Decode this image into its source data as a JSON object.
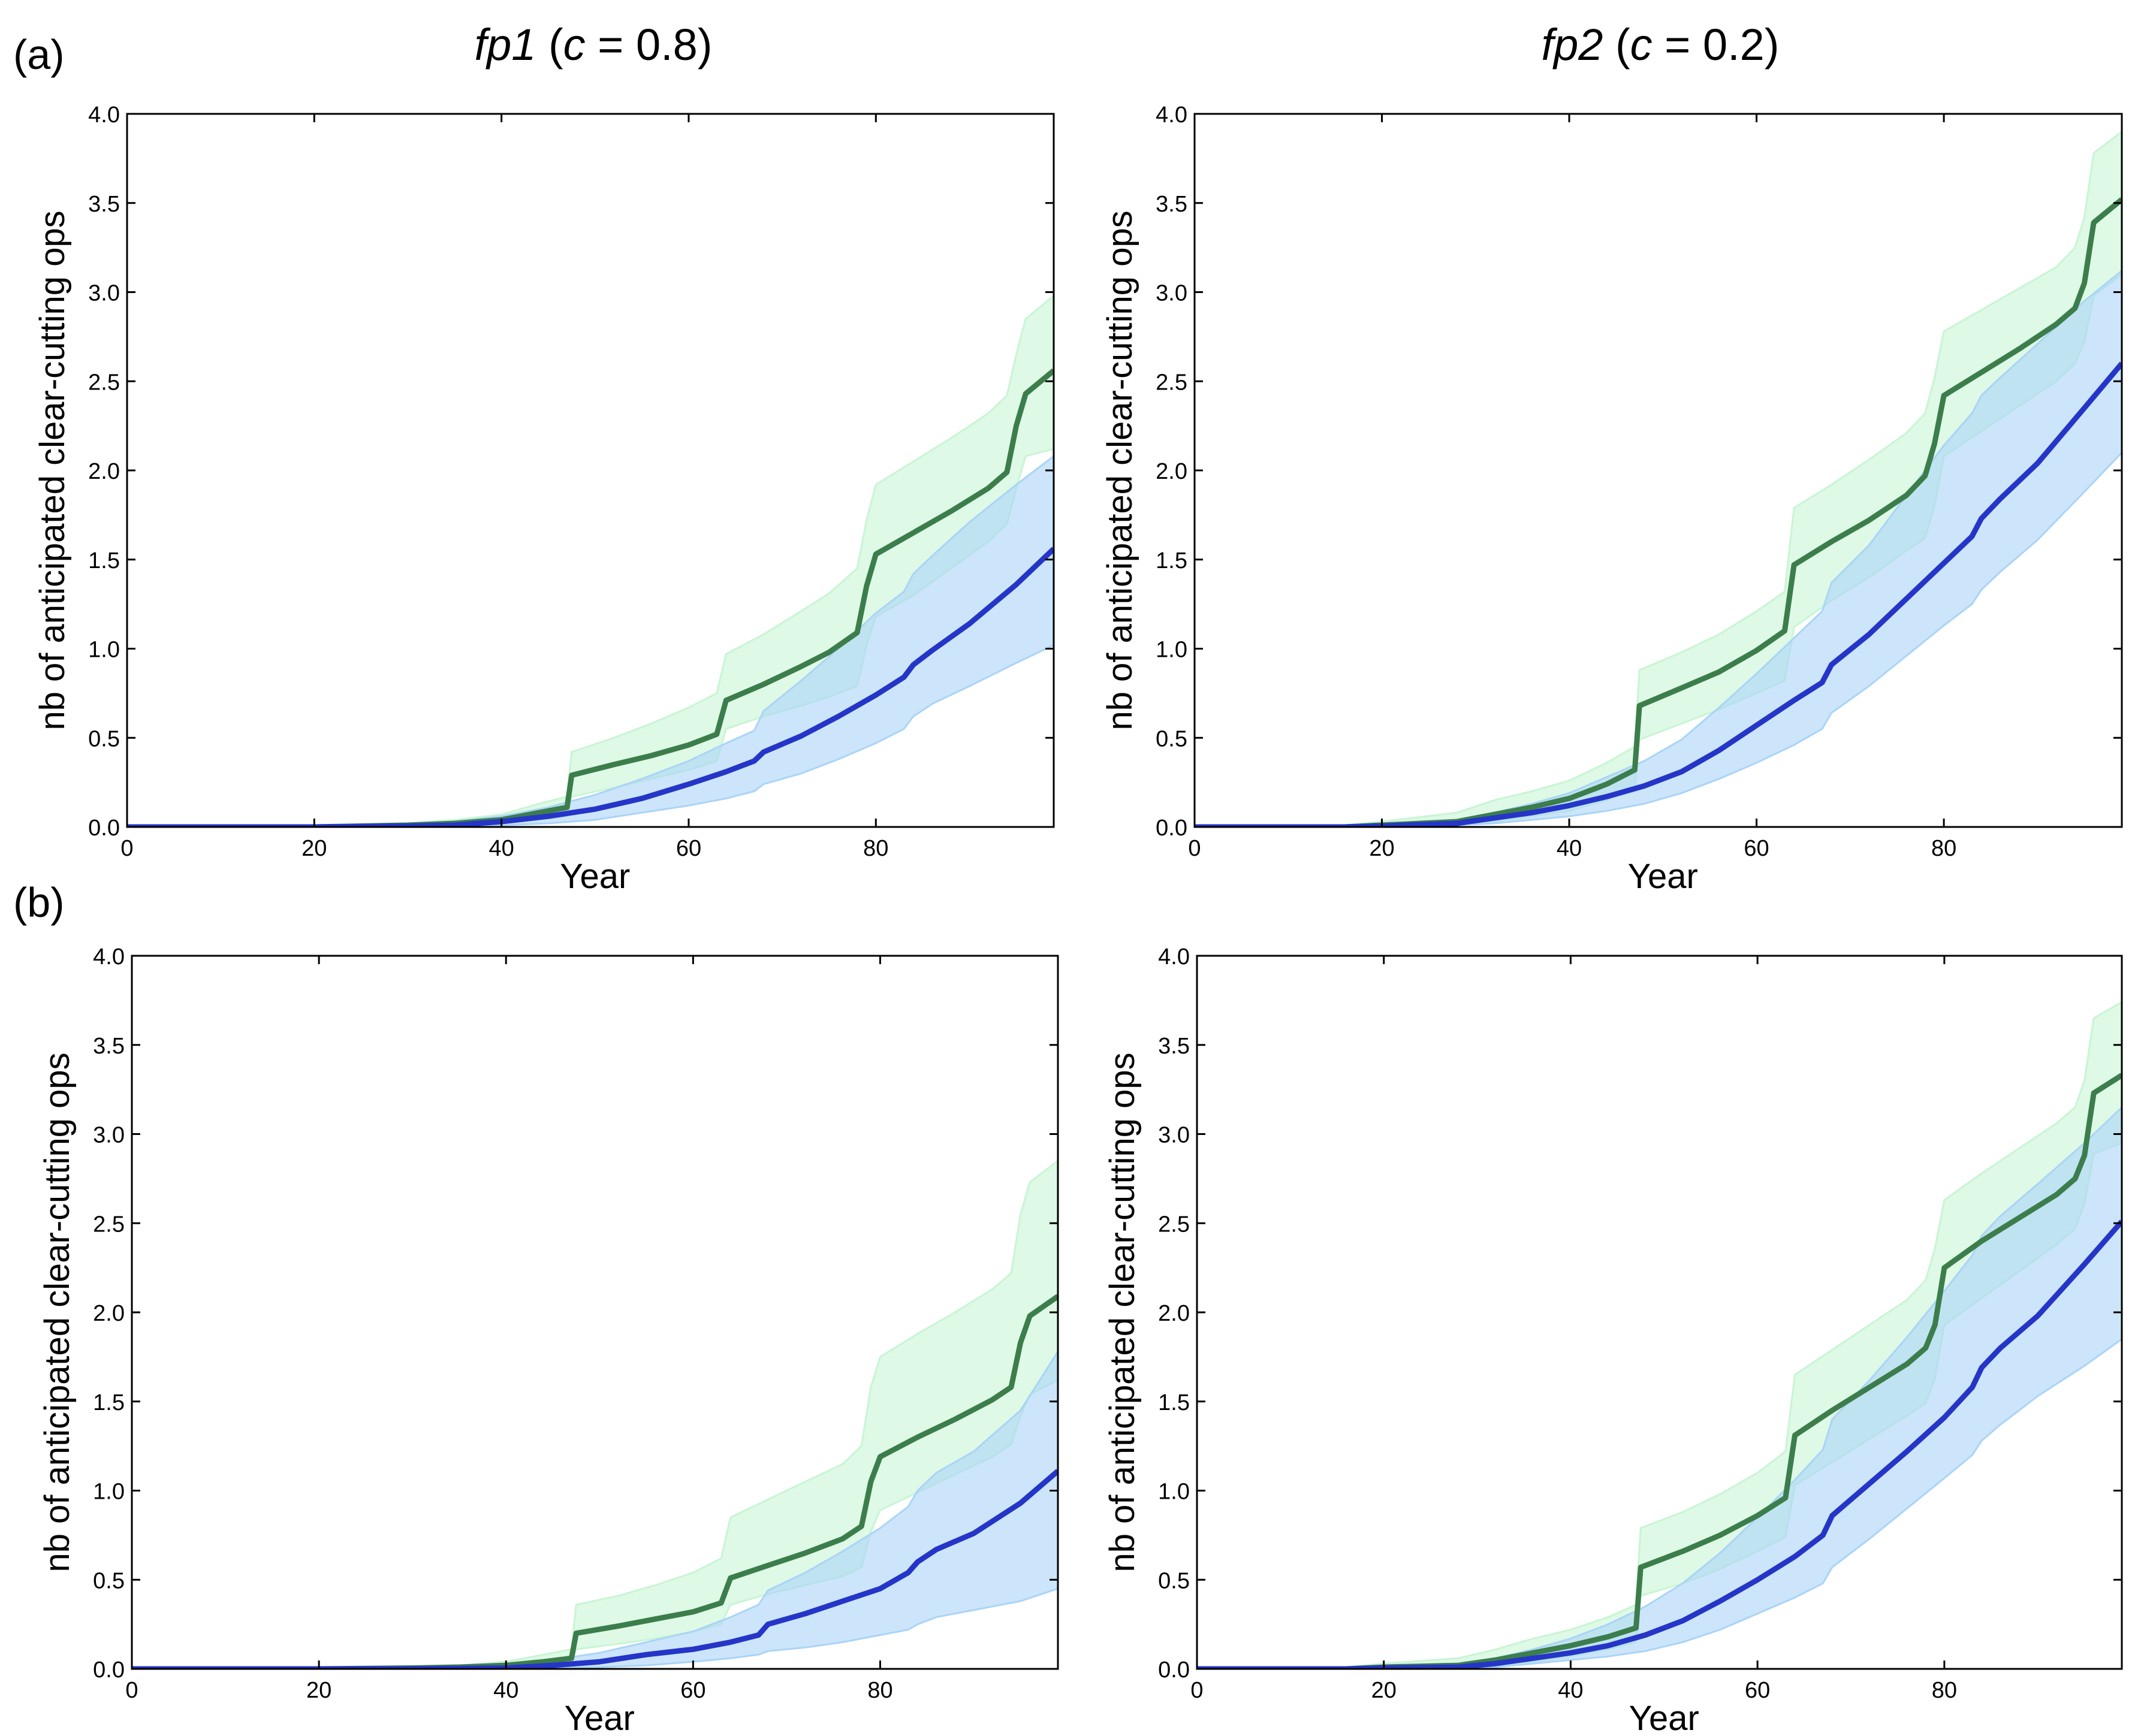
{
  "figure": {
    "column_titles": [
      {
        "italic_part": "fp1",
        "open": " (",
        "c_symbol": "c",
        "rest": " = 0.8)"
      },
      {
        "italic_part": "fp2",
        "open": " (",
        "c_symbol": "c",
        "rest": " = 0.2)"
      }
    ],
    "row_labels": [
      "(a)",
      "(b)"
    ]
  },
  "chart_data": [
    {
      "id": "a-fp1",
      "type": "line",
      "xlabel": "Year",
      "ylabel": "nb of anticipated clear-cutting ops",
      "xlim": [
        0,
        99
      ],
      "ylim": [
        0,
        4.0
      ],
      "xticks": [
        "0",
        "20",
        "40",
        "60",
        "80"
      ],
      "yticks": [
        "0.0",
        "0.5",
        "1.0",
        "1.5",
        "2.0",
        "2.5",
        "3.0",
        "3.5",
        "4.0"
      ],
      "series": [
        {
          "name": "green",
          "color": "#3c7d4c",
          "band_color": "#c8f5d4",
          "x": [
            0,
            20,
            30,
            35,
            40,
            44,
            47,
            47.5,
            52,
            56,
            60,
            63,
            64,
            68,
            72,
            75,
            78,
            79,
            80,
            84,
            88,
            92,
            94,
            95,
            96,
            99
          ],
          "y": [
            0,
            0,
            0.01,
            0.02,
            0.04,
            0.08,
            0.11,
            0.29,
            0.35,
            0.4,
            0.46,
            0.52,
            0.71,
            0.8,
            0.9,
            0.98,
            1.09,
            1.35,
            1.53,
            1.65,
            1.77,
            1.9,
            1.99,
            2.25,
            2.43,
            2.56
          ],
          "low": [
            0,
            0,
            0,
            0.01,
            0.02,
            0.04,
            0.06,
            0.17,
            0.22,
            0.27,
            0.32,
            0.37,
            0.55,
            0.62,
            0.68,
            0.73,
            0.79,
            1.02,
            1.18,
            1.3,
            1.45,
            1.6,
            1.7,
            1.9,
            2.08,
            2.12
          ],
          "high": [
            0,
            0.01,
            0.02,
            0.04,
            0.07,
            0.13,
            0.17,
            0.42,
            0.5,
            0.58,
            0.67,
            0.75,
            0.97,
            1.08,
            1.21,
            1.31,
            1.45,
            1.72,
            1.92,
            2.05,
            2.18,
            2.32,
            2.42,
            2.65,
            2.85,
            2.98
          ]
        },
        {
          "name": "blue",
          "color": "#2535c8",
          "band_color": "#aad4f7",
          "x": [
            0,
            20,
            30,
            35,
            40,
            45,
            50,
            55,
            60,
            64,
            67,
            68,
            72,
            76,
            80,
            83,
            84,
            86,
            90,
            95,
            99
          ],
          "y": [
            0,
            0,
            0.005,
            0.01,
            0.03,
            0.06,
            0.1,
            0.16,
            0.24,
            0.31,
            0.37,
            0.42,
            0.51,
            0.62,
            0.74,
            0.84,
            0.91,
            0.99,
            1.14,
            1.36,
            1.56
          ],
          "low": [
            0,
            0,
            0,
            0,
            0.01,
            0.02,
            0.04,
            0.08,
            0.12,
            0.16,
            0.2,
            0.24,
            0.3,
            0.38,
            0.47,
            0.55,
            0.62,
            0.69,
            0.79,
            0.92,
            1.02
          ],
          "high": [
            0,
            0.005,
            0.01,
            0.03,
            0.06,
            0.11,
            0.18,
            0.27,
            0.37,
            0.47,
            0.54,
            0.65,
            0.82,
            1.0,
            1.2,
            1.32,
            1.42,
            1.52,
            1.71,
            1.92,
            2.08
          ]
        }
      ]
    },
    {
      "id": "a-fp2",
      "type": "line",
      "xlabel": "Year",
      "ylabel": "nb of anticipated clear-cutting ops",
      "xlim": [
        0,
        99
      ],
      "ylim": [
        0,
        4.0
      ],
      "xticks": [
        "0",
        "20",
        "40",
        "60",
        "80"
      ],
      "yticks": [
        "0.0",
        "0.5",
        "1.0",
        "1.5",
        "2.0",
        "2.5",
        "3.0",
        "3.5",
        "4.0"
      ],
      "series": [
        {
          "name": "green",
          "color": "#3c7d4c",
          "band_color": "#c8f5d4",
          "x": [
            0,
            16,
            20,
            28,
            32,
            36,
            40,
            44,
            47,
            47.5,
            52,
            56,
            60,
            63,
            64,
            68,
            72,
            76,
            78,
            79,
            80,
            84,
            88,
            92,
            94,
            95,
            96,
            99
          ],
          "y": [
            0,
            0,
            0.01,
            0.03,
            0.07,
            0.11,
            0.16,
            0.24,
            0.32,
            0.68,
            0.78,
            0.87,
            0.99,
            1.1,
            1.47,
            1.6,
            1.72,
            1.86,
            1.97,
            2.15,
            2.42,
            2.55,
            2.68,
            2.82,
            2.91,
            3.05,
            3.39,
            3.52
          ],
          "low": [
            0,
            0,
            0,
            0.01,
            0.03,
            0.06,
            0.09,
            0.15,
            0.22,
            0.49,
            0.58,
            0.66,
            0.75,
            0.82,
            1.12,
            1.27,
            1.4,
            1.55,
            1.62,
            1.8,
            2.08,
            2.22,
            2.36,
            2.5,
            2.6,
            2.72,
            2.98,
            3.1
          ],
          "high": [
            0,
            0.01,
            0.03,
            0.08,
            0.15,
            0.2,
            0.26,
            0.36,
            0.45,
            0.88,
            0.98,
            1.08,
            1.21,
            1.32,
            1.79,
            1.92,
            2.06,
            2.21,
            2.32,
            2.52,
            2.78,
            2.9,
            3.02,
            3.14,
            3.25,
            3.42,
            3.78,
            3.9
          ]
        },
        {
          "name": "blue",
          "color": "#2535c8",
          "band_color": "#aad4f7",
          "x": [
            0,
            16,
            20,
            28,
            32,
            36,
            40,
            44,
            48,
            52,
            56,
            60,
            64,
            67,
            68,
            72,
            76,
            80,
            83,
            84,
            86,
            90,
            95,
            99
          ],
          "y": [
            0,
            0,
            0.005,
            0.02,
            0.05,
            0.08,
            0.12,
            0.17,
            0.23,
            0.31,
            0.43,
            0.57,
            0.71,
            0.81,
            0.91,
            1.08,
            1.28,
            1.48,
            1.63,
            1.73,
            1.84,
            2.04,
            2.35,
            2.6
          ],
          "low": [
            0,
            0,
            0,
            0.01,
            0.02,
            0.04,
            0.06,
            0.09,
            0.13,
            0.19,
            0.27,
            0.36,
            0.46,
            0.55,
            0.64,
            0.79,
            0.96,
            1.13,
            1.25,
            1.33,
            1.43,
            1.61,
            1.88,
            2.1
          ],
          "high": [
            0,
            0.005,
            0.01,
            0.04,
            0.08,
            0.13,
            0.19,
            0.28,
            0.37,
            0.49,
            0.67,
            0.86,
            1.06,
            1.21,
            1.37,
            1.58,
            1.86,
            2.14,
            2.32,
            2.42,
            2.52,
            2.71,
            2.95,
            3.12
          ]
        }
      ]
    },
    {
      "id": "b-fp1",
      "type": "line",
      "xlabel": "Year",
      "ylabel": "nb of anticipated clear-cutting ops",
      "xlim": [
        0,
        99
      ],
      "ylim": [
        0,
        4.0
      ],
      "xticks": [
        "0",
        "20",
        "40",
        "60",
        "80"
      ],
      "yticks": [
        "0.0",
        "0.5",
        "1.0",
        "1.5",
        "2.0",
        "2.5",
        "3.0",
        "3.5",
        "4.0"
      ],
      "series": [
        {
          "name": "green",
          "color": "#3c7d4c",
          "band_color": "#c8f5d4",
          "x": [
            0,
            20,
            30,
            35,
            40,
            44,
            47,
            47.5,
            52,
            56,
            60,
            63,
            64,
            68,
            72,
            76,
            78,
            79,
            80,
            84,
            88,
            92,
            94,
            95,
            96,
            99
          ],
          "y": [
            0,
            0,
            0.005,
            0.01,
            0.02,
            0.04,
            0.06,
            0.2,
            0.24,
            0.28,
            0.32,
            0.37,
            0.51,
            0.58,
            0.65,
            0.73,
            0.8,
            1.05,
            1.19,
            1.3,
            1.4,
            1.51,
            1.58,
            1.83,
            1.98,
            2.09
          ],
          "low": [
            0,
            0,
            0,
            0,
            0.01,
            0.02,
            0.03,
            0.11,
            0.14,
            0.17,
            0.21,
            0.25,
            0.36,
            0.42,
            0.47,
            0.52,
            0.57,
            0.77,
            0.89,
            0.99,
            1.09,
            1.19,
            1.26,
            1.42,
            1.54,
            1.62
          ],
          "high": [
            0,
            0.005,
            0.01,
            0.02,
            0.04,
            0.08,
            0.11,
            0.36,
            0.41,
            0.47,
            0.54,
            0.62,
            0.85,
            0.95,
            1.05,
            1.15,
            1.25,
            1.58,
            1.75,
            1.88,
            2.0,
            2.13,
            2.22,
            2.55,
            2.73,
            2.85
          ]
        },
        {
          "name": "blue",
          "color": "#2535c8",
          "band_color": "#aad4f7",
          "x": [
            0,
            20,
            30,
            40,
            45,
            50,
            55,
            60,
            64,
            67,
            68,
            72,
            76,
            80,
            83,
            84,
            86,
            90,
            95,
            99
          ],
          "y": [
            0,
            0,
            0,
            0.005,
            0.02,
            0.04,
            0.08,
            0.11,
            0.15,
            0.19,
            0.25,
            0.31,
            0.38,
            0.45,
            0.54,
            0.6,
            0.67,
            0.76,
            0.93,
            1.11
          ],
          "low": [
            0,
            0,
            0,
            0,
            0.005,
            0.01,
            0.02,
            0.04,
            0.06,
            0.08,
            0.1,
            0.12,
            0.15,
            0.19,
            0.22,
            0.25,
            0.29,
            0.33,
            0.38,
            0.45
          ],
          "high": [
            0,
            0,
            0.005,
            0.02,
            0.05,
            0.09,
            0.15,
            0.21,
            0.29,
            0.36,
            0.44,
            0.54,
            0.66,
            0.79,
            0.91,
            1.0,
            1.1,
            1.22,
            1.45,
            1.78
          ]
        }
      ]
    },
    {
      "id": "b-fp2",
      "type": "line",
      "xlabel": "Year",
      "ylabel": "nb of anticipated clear-cutting ops",
      "xlim": [
        0,
        99
      ],
      "ylim": [
        0,
        4.0
      ],
      "xticks": [
        "0",
        "20",
        "40",
        "60",
        "80"
      ],
      "yticks": [
        "0.0",
        "0.5",
        "1.0",
        "1.5",
        "2.0",
        "2.5",
        "3.0",
        "3.5",
        "4.0"
      ],
      "series": [
        {
          "name": "green",
          "color": "#3c7d4c",
          "band_color": "#c8f5d4",
          "x": [
            0,
            16,
            20,
            28,
            32,
            36,
            40,
            44,
            47,
            47.5,
            52,
            56,
            60,
            63,
            64,
            68,
            72,
            76,
            78,
            79,
            80,
            84,
            88,
            92,
            94,
            95,
            96,
            99
          ],
          "y": [
            0,
            0,
            0.01,
            0.02,
            0.05,
            0.09,
            0.13,
            0.18,
            0.23,
            0.57,
            0.66,
            0.75,
            0.86,
            0.96,
            1.31,
            1.45,
            1.58,
            1.71,
            1.8,
            1.93,
            2.25,
            2.4,
            2.53,
            2.66,
            2.75,
            2.88,
            3.23,
            3.33
          ],
          "low": [
            0,
            0,
            0,
            0.01,
            0.02,
            0.04,
            0.07,
            0.11,
            0.15,
            0.41,
            0.48,
            0.56,
            0.66,
            0.74,
            1.03,
            1.16,
            1.29,
            1.42,
            1.49,
            1.63,
            1.93,
            2.08,
            2.23,
            2.38,
            2.47,
            2.61,
            2.89,
            2.95
          ],
          "high": [
            0,
            0.01,
            0.03,
            0.06,
            0.11,
            0.17,
            0.22,
            0.29,
            0.36,
            0.79,
            0.88,
            0.98,
            1.1,
            1.22,
            1.65,
            1.79,
            1.93,
            2.07,
            2.18,
            2.36,
            2.63,
            2.78,
            2.92,
            3.06,
            3.15,
            3.3,
            3.65,
            3.74
          ]
        },
        {
          "name": "blue",
          "color": "#2535c8",
          "band_color": "#aad4f7",
          "x": [
            0,
            16,
            20,
            28,
            32,
            36,
            40,
            44,
            48,
            52,
            56,
            60,
            64,
            67,
            68,
            72,
            76,
            80,
            83,
            84,
            86,
            90,
            95,
            99
          ],
          "y": [
            0,
            0,
            0.005,
            0.01,
            0.03,
            0.06,
            0.09,
            0.13,
            0.19,
            0.27,
            0.38,
            0.5,
            0.63,
            0.75,
            0.86,
            1.04,
            1.22,
            1.41,
            1.58,
            1.69,
            1.8,
            1.98,
            2.27,
            2.51
          ],
          "low": [
            0,
            0,
            0,
            0.005,
            0.01,
            0.03,
            0.05,
            0.07,
            0.1,
            0.15,
            0.22,
            0.31,
            0.4,
            0.48,
            0.57,
            0.73,
            0.9,
            1.07,
            1.2,
            1.28,
            1.37,
            1.53,
            1.7,
            1.85
          ],
          "high": [
            0,
            0.005,
            0.01,
            0.03,
            0.06,
            0.11,
            0.17,
            0.25,
            0.35,
            0.48,
            0.65,
            0.85,
            1.06,
            1.23,
            1.4,
            1.62,
            1.86,
            2.12,
            2.32,
            2.43,
            2.54,
            2.72,
            2.95,
            3.15
          ]
        }
      ]
    }
  ]
}
